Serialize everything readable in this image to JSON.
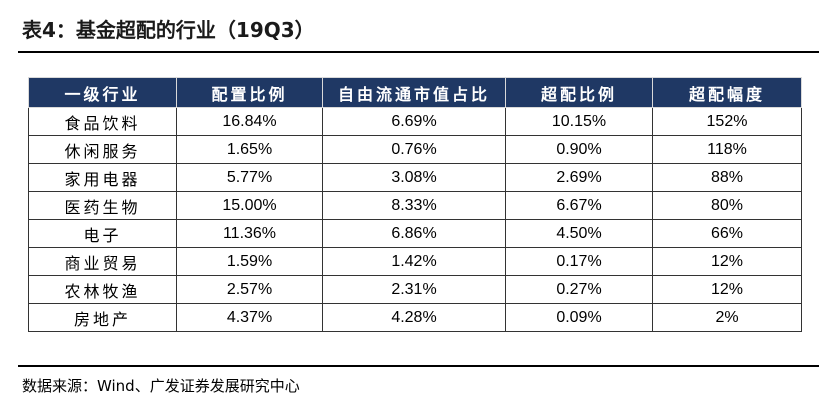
{
  "title": "表4：基金超配的行业（19Q3）",
  "table": {
    "headers": [
      "一级行业",
      "配置比例",
      "自由流通市值占比",
      "超配比例",
      "超配幅度"
    ],
    "rows": [
      [
        "食品饮料",
        "16.84%",
        "6.69%",
        "10.15%",
        "152%"
      ],
      [
        "休闲服务",
        "1.65%",
        "0.76%",
        "0.90%",
        "118%"
      ],
      [
        "家用电器",
        "5.77%",
        "3.08%",
        "2.69%",
        "88%"
      ],
      [
        "医药生物",
        "15.00%",
        "8.33%",
        "6.67%",
        "80%"
      ],
      [
        "电子",
        "11.36%",
        "6.86%",
        "4.50%",
        "66%"
      ],
      [
        "商业贸易",
        "1.59%",
        "1.42%",
        "0.17%",
        "12%"
      ],
      [
        "农林牧渔",
        "2.57%",
        "2.31%",
        "0.27%",
        "12%"
      ],
      [
        "房地产",
        "4.37%",
        "4.28%",
        "0.09%",
        "2%"
      ]
    ]
  },
  "source": "数据来源：Wind、广发证券发展研究中心",
  "colors": {
    "header_bg": "#1f3864",
    "header_text": "#ffffff"
  }
}
